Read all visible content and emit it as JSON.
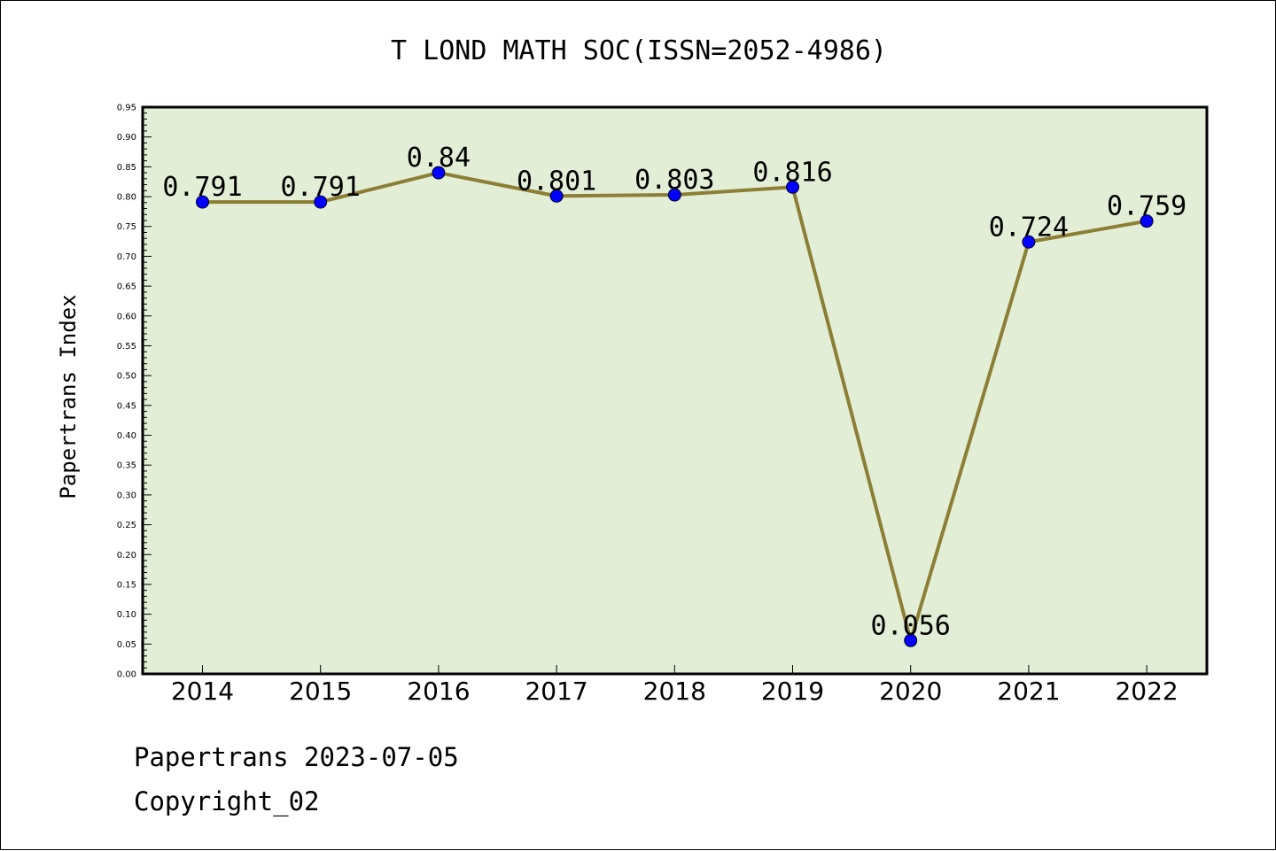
{
  "chart_data": {
    "type": "line",
    "title": "T LOND MATH SOC(ISSN=2052-4986)",
    "ylabel": "Papertrans Index",
    "xlabel": "",
    "categories": [
      "2014",
      "2015",
      "2016",
      "2017",
      "2018",
      "2019",
      "2020",
      "2021",
      "2022"
    ],
    "series": [
      {
        "values": [
          0.791,
          0.791,
          0.84,
          0.801,
          0.803,
          0.816,
          0.056,
          0.724,
          0.759
        ],
        "data_labels": [
          "0.791",
          "0.791",
          "0.84",
          "0.801",
          "0.803",
          "0.816",
          "0.056",
          "0.724",
          "0.759"
        ]
      }
    ],
    "ylim": [
      0,
      0.95
    ],
    "yticks": [
      "0.00",
      "0.05",
      "0.10",
      "0.15",
      "0.20",
      "0.25",
      "0.30",
      "0.35",
      "0.40",
      "0.45",
      "0.50",
      "0.55",
      "0.60",
      "0.65",
      "0.70",
      "0.75",
      "0.80",
      "0.85",
      "0.90",
      "0.95"
    ],
    "grid": false,
    "colors": {
      "plot_background": "#e2efd6",
      "line": "#8c7f35",
      "marker": "#0000ff"
    }
  },
  "footer": {
    "date_line": "Papertrans 2023-07-05",
    "copyright_line": "Copyright_02"
  }
}
